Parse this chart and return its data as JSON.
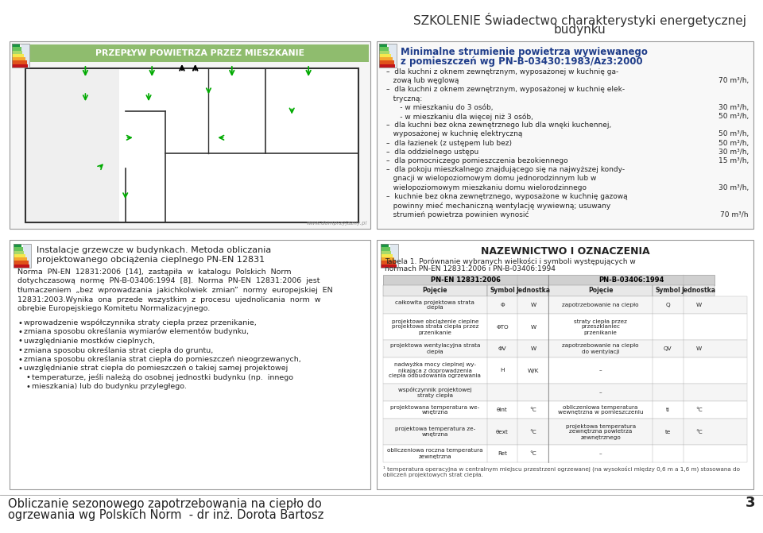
{
  "title_line1": "SZKOLENIE Świadectwo charakterystyki energetycznej",
  "title_line2": "budynku",
  "bg_color": "#ffffff",
  "title_color": "#333333",
  "top_left_box_title": "PRZEPŁYW POWIETRZA PRZEZ MIESZKANIE",
  "top_left_title_bg": "#8fbc6e",
  "top_right_title_line1": "Minimalne strumienie powietrza wywiewanego",
  "top_right_title_line2": "z pomieszczeń wg PN-B-03430:1983/Az3:2000",
  "top_right_title_color": "#1f3d8a",
  "top_right_text_lines": [
    [
      "–  dla kuchni z oknem zewnętrznym, wyposażonej w kuchnię ga-",
      ""
    ],
    [
      "   zową lub węglową",
      "70 m³/h,"
    ],
    [
      "–  dla kuchni z oknem zewnętrznym, wyposażonej w kuchnię elek-",
      ""
    ],
    [
      "   tryczną:",
      ""
    ],
    [
      "      - w mieszkaniu do 3 osób,",
      "30 m³/h,"
    ],
    [
      "      - w mieszkaniu dla więcej niż 3 osób,",
      "50 m³/h,"
    ],
    [
      "–  dla kuchni bez okna zewnętrznego lub dla wnęki kuchennej,",
      ""
    ],
    [
      "   wyposażonej w kuchnię elektryczną",
      "50 m³/h,"
    ],
    [
      "–  dla łazienek (z ustępem lub bez)",
      "50 m³/h,"
    ],
    [
      "–  dla oddzielnego ustępu",
      "30 m³/h,"
    ],
    [
      "–  dla pomocniczego pomieszczenia bezokiennego",
      "15 m³/h,"
    ],
    [
      "–  dla pokoju mieszkalnego znajdującego się na najwyższej kondy-",
      ""
    ],
    [
      "   gnacji w wielopoziomowym domu jednorodzinnym lub w",
      ""
    ],
    [
      "   wielopoziomowym mieszkaniu domu wielorodzinnego",
      "30 m³/h,"
    ],
    [
      "–  kuchnie bez okna zewnętrznego, wyposażone w kuchnię gazową",
      ""
    ],
    [
      "   powinny mieć mechaniczną wentylację wywiewną; usuwany",
      ""
    ],
    [
      "   strumień powietrza powinien wynosić",
      "70 m³/h"
    ]
  ],
  "watermark": "www.domprzyjazny.pl",
  "left_box_header_line1": "Instalacje grzewcze w budynkach. Metoda obliczania",
  "left_box_header_line2": "projektowanego obciążenia cieplnego PN-EN 12831",
  "left_box_para_lines": [
    "Norma  PN-EN  12831:2006  [14],  zastąpiła  w  katalogu  Polskich  Norm",
    "dotychczasową  normę  PN-B-03406:1994  [8].  Norma  PN-EN  12831:2006  jest",
    "tłumaczeniem  „bez  wprowadzania  jakichkolwiek  zmian”  normy  europejskiej  EN",
    "12831:2003.Wynika  ona  przede  wszystkim  z  procesu  ujednolicania  norm  w",
    "obrębie Europejskiego Komitetu Normalizacyjnego."
  ],
  "bullet_items": [
    "wprowadzenie współczynnika straty ciepła przez przenikanie,",
    "zmiana sposobu określania wymiarów elementów budynku,",
    "uwzględnianie mostków cieplnych,",
    "zmiana sposobu określania strat ciepła do gruntu,",
    "zmiana sposobu określania strat ciepła do pomieszczeń nieogrzewanych,",
    "uwzględnianie strat ciepła do pomieszczeń o takiej samej projektowej",
    "temperaturze, jeśli należą do osobnej jednostki budynku (np.  innego",
    "mieszkania) lub do budynku przyległego."
  ],
  "bullet_indent": [
    0,
    0,
    0,
    0,
    0,
    0,
    1,
    1
  ],
  "right_box_title": "NAZEWNICTWO I OZNACZENIA",
  "right_box_subtitle": "Tabela 1. Porównanie wybranych wielkości i symboli występujących w normach PN-EN 12831:2006 i PN-B-03406:1994",
  "table_col_labels_1": [
    "PN-EN 12831:2006",
    "PN-B-03406:1994"
  ],
  "table_col_labels_2": [
    "Pojęcie",
    "Symbol",
    "Jednostka",
    "Pojęcie",
    "Symbol",
    "Jednostka"
  ],
  "table_rows": [
    [
      "całkowita projektowa strata\nciepła",
      "Φ",
      "W",
      "zapotrzebowanie na ciepło",
      "Q",
      "W"
    ],
    [
      "projektowe obciążenie cieplne\nprojektowa strata ciepła przez\nprzenikanie",
      "ΦTO",
      "W",
      "straty ciepła przez\nprzeszklaniec\nprzenikanie",
      "",
      ""
    ],
    [
      "projektowa wentylacyjna strata\nciepła",
      "ΦV",
      "W",
      "zapotrzebowanie na ciepło\ndo wentylacji",
      "QV",
      "W"
    ],
    [
      "nadwyżka mocy cieplnej wy-\nnikająca z doprowadzenia\nciepła odbudowania ogrzewania",
      "H",
      "W/K",
      "–",
      "",
      ""
    ],
    [
      "współczynnik projektowej\nstraty ciepła",
      "",
      "",
      "–",
      "",
      ""
    ],
    [
      "projektowana temperatura we-\nwnętrzna",
      "θint",
      "°C",
      "obliczeniowa temperatura\nwewnętrzna w pomieszczeniu",
      "ti",
      "°C"
    ],
    [
      "projektowa temperatura ze-\nwnętrzna",
      "θext",
      "°C",
      "projektowa temperatura\nzewnętrzna powietrza\nzewnętrznego",
      "te",
      "°C"
    ],
    [
      "obliczeniowa roczna temperatura\nzewnętrzna",
      "Ret",
      "°C",
      "–",
      "",
      ""
    ]
  ],
  "footnote": "¹ temperatura operacyjna w centralnym miejscu przestrzeni ogrzewanej (na wysokości między 0,6 m a 1,6 m) stosowana do obliczeń projektowych strat ciepła.",
  "bottom_left_line1": "Obliczanie sezonowego zapotrzebowania na ciepło do",
  "bottom_left_line2": "ogrzewania wg Polskich Norm  - dr inż. Dorota Bartosz",
  "page_number": "3",
  "box_border_color": "#999999",
  "energy_colors": [
    "#1a9641",
    "#67c45a",
    "#a8d96a",
    "#f5e84e",
    "#f5a830",
    "#e0521a",
    "#c0141a"
  ],
  "energy_label_color": "#0060a0"
}
